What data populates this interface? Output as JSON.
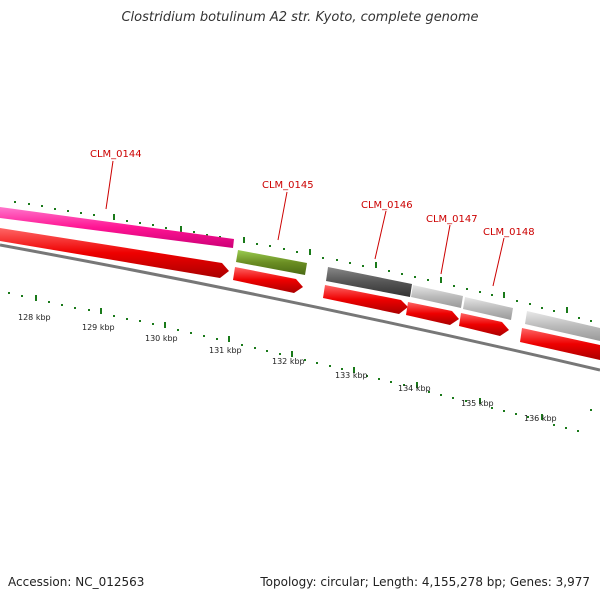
{
  "title": "Clostridium botulinum A2 str. Kyoto, complete genome",
  "footer": {
    "accession": "Accession: NC_012563",
    "stats": "Topology: circular; Length: 4,155,278 bp; Genes: 3,977"
  },
  "genes": [
    {
      "id": "CLM_0144",
      "label": "CLM_0144"
    },
    {
      "id": "CLM_0145",
      "label": "CLM_0145"
    },
    {
      "id": "CLM_0146",
      "label": "CLM_0146"
    },
    {
      "id": "CLM_0147",
      "label": "CLM_0147"
    },
    {
      "id": "CLM_0148",
      "label": "CLM_0148"
    }
  ],
  "scale_labels": [
    "128 kbp",
    "129 kbp",
    "130 kbp",
    "131 kbp",
    "132 kbp",
    "133 kbp",
    "134 kbp",
    "135 kbp",
    "136 kbp"
  ],
  "colors": {
    "cds_forward": "#ff0000",
    "gene_pink": "#ff1493",
    "gene_olive": "#6b8e23",
    "gene_dark_gray": "#555555",
    "gene_light_gray": "#bbbbbb",
    "tick_green": "#1a7a1a",
    "backbone": "#777777",
    "label_red": "#cc0000"
  }
}
